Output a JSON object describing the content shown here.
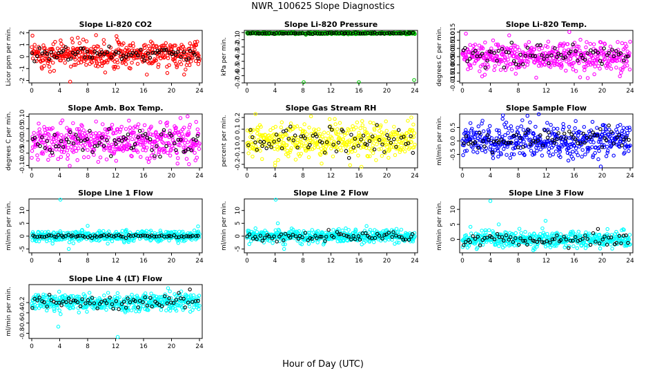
{
  "figure": {
    "title": "NWR_100625  Slope Diagnostics",
    "xlabel": "Hour of Day (UTC)"
  },
  "chart_data": [
    {
      "type": "scatter",
      "title": "Slope Li-820 CO2",
      "ylabel": "Licor ppm per min.",
      "xlim": [
        0,
        24
      ],
      "ylim": [
        -2.2,
        2.2
      ],
      "yticks": [
        -2,
        -1,
        0,
        1,
        2
      ],
      "xticks": [
        0,
        4,
        8,
        12,
        16,
        20,
        24
      ],
      "color": "#ff0000",
      "second_color": "#000000",
      "center": 0.2,
      "spread": 0.55,
      "second_spread": 0.25,
      "outliers": [
        [
          5.5,
          -2.1
        ],
        [
          9.2,
          1.8
        ],
        [
          10.3,
          1.4
        ]
      ]
    },
    {
      "type": "scatter",
      "title": "Slope Li-820 Pressure",
      "ylabel": "kPa per min.",
      "xlim": [
        0,
        24
      ],
      "ylim": [
        -0.7,
        0.03
      ],
      "yticks": [
        -0.7,
        -0.6,
        -0.5,
        -0.4,
        -0.3,
        -0.2,
        -0.1,
        0
      ],
      "ytick_labels": [
        "-0.7",
        "-0.6",
        "-0.5",
        "-0.4",
        "-0.3",
        "-0.2",
        "-0.1",
        "0"
      ],
      "xticks": [
        0,
        4,
        8,
        12,
        16,
        20,
        24
      ],
      "color": "#00c000",
      "second_color": "#000000",
      "center": -0.01,
      "spread": 0.006,
      "second_spread": 0.004,
      "outliers": [
        [
          8.1,
          -0.69
        ],
        [
          16.0,
          -0.69
        ],
        [
          23.9,
          -0.66
        ]
      ]
    },
    {
      "type": "scatter",
      "title": "Slope Li-820 Temp.",
      "ylabel": "degrees C per min.",
      "xlim": [
        0,
        24
      ],
      "ylim": [
        -0.016,
        0.016
      ],
      "yticks": [
        -0.015,
        -0.01,
        -0.005,
        0,
        0.005,
        0.01,
        0.015
      ],
      "ytick_labels": [
        "-0.015",
        "-0.010",
        "-0.005",
        "0.000",
        "0.005",
        "0.010",
        "0.015"
      ],
      "xticks": [
        0,
        4,
        8,
        12,
        16,
        20,
        24
      ],
      "color": "#ff00ff",
      "second_color": "#000000",
      "center": 0.0,
      "spread": 0.0045,
      "second_spread": 0.004,
      "outliers": [
        [
          0.5,
          0.014
        ],
        [
          15.3,
          0.015
        ],
        [
          3.2,
          -0.011
        ]
      ]
    },
    {
      "type": "scatter",
      "title": "Slope Amb. Box Temp.",
      "ylabel": "degrees C per min.",
      "xlim": [
        0,
        24
      ],
      "ylim": [
        -0.11,
        0.11
      ],
      "yticks": [
        -0.1,
        -0.05,
        0,
        0.05,
        0.1
      ],
      "ytick_labels": [
        "-0.10",
        "-0.05",
        "0.00",
        "0.05",
        "0.10"
      ],
      "xticks": [
        0,
        4,
        8,
        12,
        16,
        20,
        24
      ],
      "color": "#ff00ff",
      "second_color": "#000000",
      "center": 0.0,
      "spread": 0.035,
      "second_spread": 0.03,
      "outliers": [
        [
          22.3,
          0.1
        ],
        [
          22.5,
          -0.095
        ]
      ]
    },
    {
      "type": "scatter",
      "title": "Slope Gas Stream RH",
      "ylabel": "percent per min.",
      "xlim": [
        0,
        24
      ],
      "ylim": [
        -0.23,
        0.23
      ],
      "yticks": [
        -0.2,
        -0.1,
        0,
        0.1,
        0.2
      ],
      "ytick_labels": [
        "-0.2",
        "-0.1",
        "0.0",
        "0.1",
        "0.2"
      ],
      "xticks": [
        0,
        4,
        8,
        12,
        16,
        20,
        24
      ],
      "color": "#ffff00",
      "second_color": "#000000",
      "center": 0.0,
      "spread": 0.07,
      "second_spread": 0.06,
      "outliers": [
        [
          23.5,
          0.2
        ],
        [
          4.0,
          -0.21
        ]
      ]
    },
    {
      "type": "scatter",
      "title": "Slope Sample Flow",
      "ylabel": "ml/min per min.",
      "xlim": [
        0,
        24
      ],
      "ylim": [
        -1.0,
        1.0
      ],
      "yticks": [
        -0.5,
        0,
        0.5
      ],
      "ytick_labels": [
        "-0.5",
        "0.0",
        "0.5"
      ],
      "xticks": [
        0,
        4,
        8,
        12,
        16,
        20,
        24
      ],
      "color": "#0000ff",
      "second_color": "#000000",
      "center": 0.0,
      "spread": 0.28,
      "second_spread": 0.2,
      "outliers": [
        [
          5.8,
          0.95
        ],
        [
          19.8,
          -0.95
        ]
      ]
    },
    {
      "type": "scatter",
      "title": "Slope Line 1 Flow",
      "ylabel": "ml/min per min.",
      "xlim": [
        0,
        24
      ],
      "ylim": [
        -6.5,
        14.5
      ],
      "yticks": [
        -5,
        0,
        5,
        10
      ],
      "xticks": [
        0,
        4,
        8,
        12,
        16,
        20,
        24
      ],
      "color": "#00ffff",
      "second_color": "#000000",
      "center": 0.0,
      "spread": 1.0,
      "second_spread": 0.3,
      "outliers": [
        [
          4.1,
          14.2
        ],
        [
          5.3,
          -5.0
        ],
        [
          8.0,
          4.0
        ],
        [
          23.8,
          3.8
        ]
      ]
    },
    {
      "type": "scatter",
      "title": "Slope Line 2 Flow",
      "ylabel": "ml/min per min.",
      "xlim": [
        0,
        24
      ],
      "ylim": [
        -6.5,
        14.5
      ],
      "yticks": [
        -5,
        0,
        5,
        10
      ],
      "xticks": [
        0,
        4,
        8,
        12,
        16,
        20,
        24
      ],
      "color": "#00ffff",
      "second_color": "#000000",
      "center": 0.0,
      "spread": 1.3,
      "second_spread": 1.0,
      "outliers": [
        [
          4.1,
          14.2
        ],
        [
          4.4,
          5.0
        ],
        [
          5.3,
          -5.0
        ]
      ]
    },
    {
      "type": "scatter",
      "title": "Slope Line 3 Flow",
      "ylabel": "ml/min per min.",
      "xlim": [
        0,
        24
      ],
      "ylim": [
        -4.5,
        13.5
      ],
      "yticks": [
        0,
        5,
        10
      ],
      "xticks": [
        0,
        4,
        8,
        12,
        16,
        20,
        24
      ],
      "color": "#00ffff",
      "second_color": "#000000",
      "center": 0.0,
      "spread": 1.3,
      "second_spread": 1.1,
      "outliers": [
        [
          4.0,
          12.8
        ],
        [
          11.9,
          6.2
        ],
        [
          5.2,
          5.0
        ]
      ]
    },
    {
      "type": "scatter",
      "title": "Slope Line 4 (LT) Flow",
      "ylabel": "ml/min per min.",
      "xlim": [
        0,
        24
      ],
      "ylim": [
        -0.9,
        0.15
      ],
      "yticks": [
        -0.8,
        -0.6,
        -0.4,
        -0.2
      ],
      "ytick_labels": [
        "-0.8",
        "-0.6",
        "-0.4",
        "-0.2"
      ],
      "xticks": [
        0,
        4,
        8,
        12,
        16,
        20,
        24
      ],
      "color": "#00ffff",
      "second_color": "#000000",
      "center": -0.2,
      "spread": 0.08,
      "second_spread": 0.07,
      "outliers": [
        [
          3.8,
          -0.67
        ],
        [
          12.3,
          -0.87
        ],
        [
          19.5,
          0.08
        ]
      ]
    }
  ]
}
